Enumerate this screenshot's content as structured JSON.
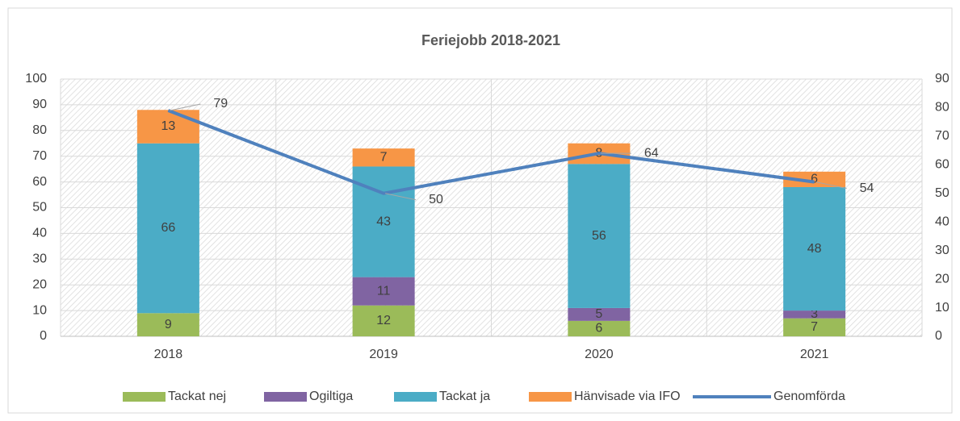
{
  "chart_data": {
    "type": "bar",
    "title": "Feriejobb 2018-2021",
    "categories": [
      "2018",
      "2019",
      "2020",
      "2021"
    ],
    "series": [
      {
        "name": "Tackat nej",
        "color": "#9bbb59",
        "values": [
          9,
          12,
          6,
          7
        ]
      },
      {
        "name": "Ogiltiga",
        "color": "#8064a2",
        "values": [
          0,
          11,
          5,
          3
        ]
      },
      {
        "name": "Tackat ja",
        "color": "#4bacc6",
        "values": [
          66,
          43,
          56,
          48
        ]
      },
      {
        "name": "Hänvisade via IFO",
        "color": "#f79646",
        "values": [
          13,
          7,
          8,
          6
        ]
      },
      {
        "name": "Genomförda",
        "color": "#4f81bd",
        "values": [
          79,
          50,
          64,
          54
        ],
        "axis": "y2",
        "type": "line"
      }
    ],
    "stacked": true,
    "ylim": [
      0,
      100
    ],
    "yticks": [
      0,
      10,
      20,
      30,
      40,
      50,
      60,
      70,
      80,
      90,
      100
    ],
    "y2lim": [
      0,
      90
    ],
    "y2ticks": [
      0,
      10,
      20,
      30,
      40,
      50,
      60,
      70,
      80,
      90
    ],
    "grid": true,
    "legend": "bottom"
  }
}
